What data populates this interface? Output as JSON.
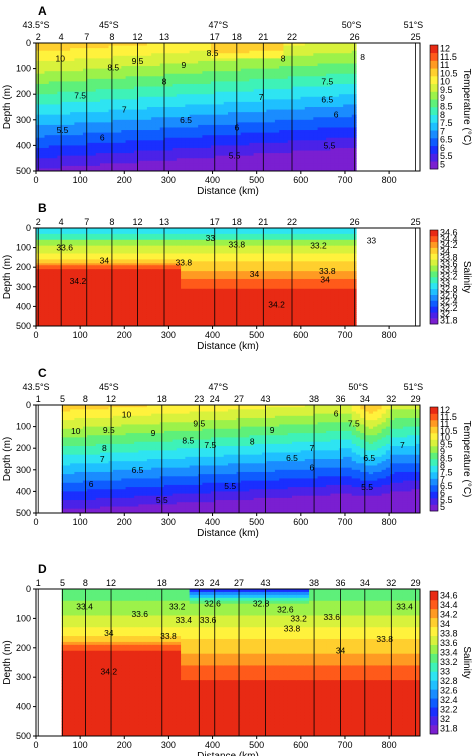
{
  "chart_data": [
    {
      "panel": "A",
      "type": "heatmap",
      "xlabel": "Distance (km)",
      "ylabel": "Depth (m)",
      "colorbar_label": "Temperature (°C)",
      "xlim": [
        0,
        870
      ],
      "ylim": [
        500,
        0
      ],
      "xticks": [
        0,
        100,
        200,
        300,
        400,
        500,
        600,
        700,
        800
      ],
      "yticks": [
        0,
        100,
        200,
        300,
        400,
        500
      ],
      "lat_labels": [
        {
          "text": "43.5°S",
          "x": 0
        },
        {
          "text": "45°S",
          "x": 165
        },
        {
          "text": "47°S",
          "x": 413
        },
        {
          "text": "50°S",
          "x": 715
        },
        {
          "text": "51°S",
          "x": 855
        }
      ],
      "stations": [
        {
          "label": "2",
          "x": 5
        },
        {
          "label": "4",
          "x": 57
        },
        {
          "label": "7",
          "x": 115
        },
        {
          "label": "8",
          "x": 172
        },
        {
          "label": "12",
          "x": 230
        },
        {
          "label": "13",
          "x": 290
        },
        {
          "label": "17",
          "x": 405
        },
        {
          "label": "18",
          "x": 455
        },
        {
          "label": "21",
          "x": 515
        },
        {
          "label": "22",
          "x": 580
        },
        {
          "label": "26",
          "x": 722
        },
        {
          "label": "25",
          "x": 860
        }
      ],
      "colorbar_ticks": [
        "5",
        "5.5",
        "6",
        "6.5",
        "7",
        "7.5",
        "8",
        "8.5",
        "9",
        "9.5",
        "10",
        "10.5",
        "11",
        "11.5",
        "12"
      ],
      "colorbar_colors": [
        "#7a1fd1",
        "#4b22e8",
        "#1a2fff",
        "#0f5cff",
        "#1a8cff",
        "#1fc0ff",
        "#2ee4f2",
        "#3ef2b8",
        "#5ef07a",
        "#9cf24a",
        "#d8f23c",
        "#fff23c",
        "#ffcf2e",
        "#ff9a22",
        "#ff5a1a",
        "#e82a14"
      ],
      "vmin": 5,
      "vmax": 12,
      "contour_labels": [
        {
          "text": "10",
          "x": 55,
          "y": 60
        },
        {
          "text": "9.5",
          "x": 230,
          "y": 70
        },
        {
          "text": "9",
          "x": 335,
          "y": 85
        },
        {
          "text": "8.5",
          "x": 400,
          "y": 40
        },
        {
          "text": "8",
          "x": 560,
          "y": 60
        },
        {
          "text": "8.5",
          "x": 175,
          "y": 95
        },
        {
          "text": "8",
          "x": 290,
          "y": 150
        },
        {
          "text": "7.5",
          "x": 100,
          "y": 205
        },
        {
          "text": "7",
          "x": 200,
          "y": 260
        },
        {
          "text": "7",
          "x": 510,
          "y": 210
        },
        {
          "text": "6.5",
          "x": 340,
          "y": 300
        },
        {
          "text": "6",
          "x": 455,
          "y": 330
        },
        {
          "text": "6",
          "x": 150,
          "y": 370
        },
        {
          "text": "5.5",
          "x": 60,
          "y": 340
        },
        {
          "text": "5.5",
          "x": 450,
          "y": 440
        },
        {
          "text": "7.5",
          "x": 660,
          "y": 150
        },
        {
          "text": "6.5",
          "x": 660,
          "y": 220
        },
        {
          "text": "6",
          "x": 680,
          "y": 280
        },
        {
          "text": "5.5",
          "x": 665,
          "y": 400
        },
        {
          "text": "8",
          "x": 740,
          "y": 55
        }
      ]
    },
    {
      "panel": "B",
      "type": "heatmap",
      "xlabel": "Distance (km)",
      "ylabel": "Depth (m)",
      "colorbar_label": "Salinity",
      "xlim": [
        0,
        870
      ],
      "ylim": [
        500,
        0
      ],
      "xticks": [
        0,
        100,
        200,
        300,
        400,
        500,
        600,
        700,
        800
      ],
      "yticks": [
        0,
        100,
        200,
        300,
        400,
        500
      ],
      "stations": [
        {
          "label": "2",
          "x": 5
        },
        {
          "label": "4",
          "x": 57
        },
        {
          "label": "7",
          "x": 115
        },
        {
          "label": "8",
          "x": 172
        },
        {
          "label": "12",
          "x": 230
        },
        {
          "label": "13",
          "x": 290
        },
        {
          "label": "17",
          "x": 405
        },
        {
          "label": "18",
          "x": 455
        },
        {
          "label": "21",
          "x": 515
        },
        {
          "label": "22",
          "x": 580
        },
        {
          "label": "26",
          "x": 722
        },
        {
          "label": "25",
          "x": 860
        }
      ],
      "colorbar_ticks": [
        "31.8",
        "32",
        "32.2",
        "32.4",
        "32.6",
        "32.8",
        "33",
        "33.2",
        "33.4",
        "33.6",
        "33.8",
        "34",
        "34.2",
        "34.4",
        "34.6"
      ],
      "colorbar_colors": [
        "#7a1fd1",
        "#4b22e8",
        "#1a2fff",
        "#0f5cff",
        "#1a8cff",
        "#1fc0ff",
        "#2ee4f2",
        "#3ef2b8",
        "#5ef07a",
        "#9cf24a",
        "#d8f23c",
        "#fff23c",
        "#ffcf2e",
        "#ff9a22",
        "#ff5a1a",
        "#e82a14"
      ],
      "vmin": 31.8,
      "vmax": 34.6,
      "contour_labels": [
        {
          "text": "33.6",
          "x": 65,
          "y": 100
        },
        {
          "text": "33",
          "x": 395,
          "y": 50
        },
        {
          "text": "33.8",
          "x": 455,
          "y": 85
        },
        {
          "text": "33.2",
          "x": 640,
          "y": 90
        },
        {
          "text": "33",
          "x": 760,
          "y": 65
        },
        {
          "text": "34",
          "x": 155,
          "y": 165
        },
        {
          "text": "33.8",
          "x": 335,
          "y": 175
        },
        {
          "text": "34",
          "x": 495,
          "y": 235
        },
        {
          "text": "33.8",
          "x": 660,
          "y": 220
        },
        {
          "text": "34",
          "x": 655,
          "y": 262
        },
        {
          "text": "34.2",
          "x": 95,
          "y": 270
        },
        {
          "text": "34.2",
          "x": 545,
          "y": 390
        }
      ]
    },
    {
      "panel": "C",
      "type": "heatmap",
      "xlabel": "Distance (km)",
      "ylabel": "Depth (m)",
      "colorbar_label": "Temperature (°C)",
      "xlim": [
        0,
        870
      ],
      "ylim": [
        500,
        0
      ],
      "xticks": [
        0,
        100,
        200,
        300,
        400,
        500,
        600,
        700,
        800
      ],
      "yticks": [
        0,
        100,
        200,
        300,
        400,
        500
      ],
      "lat_labels": [
        {
          "text": "43.5°S",
          "x": 0
        },
        {
          "text": "45°S",
          "x": 165
        },
        {
          "text": "47°S",
          "x": 413
        },
        {
          "text": "50°S",
          "x": 730
        },
        {
          "text": "51°S",
          "x": 855
        }
      ],
      "stations": [
        {
          "label": "1",
          "x": 5
        },
        {
          "label": "5",
          "x": 60
        },
        {
          "label": "8",
          "x": 112
        },
        {
          "label": "12",
          "x": 170
        },
        {
          "label": "18",
          "x": 285
        },
        {
          "label": "23",
          "x": 370
        },
        {
          "label": "24",
          "x": 405
        },
        {
          "label": "27",
          "x": 460
        },
        {
          "label": "43",
          "x": 520
        },
        {
          "label": "38",
          "x": 630
        },
        {
          "label": "36",
          "x": 690
        },
        {
          "label": "34",
          "x": 745
        },
        {
          "label": "32",
          "x": 805
        },
        {
          "label": "29",
          "x": 860
        }
      ],
      "colorbar_ticks": [
        "5",
        "5.5",
        "6",
        "6.5",
        "7",
        "7.5",
        "8",
        "8.5",
        "9",
        "9.5",
        "10",
        "10.5",
        "11",
        "11.5",
        "12"
      ],
      "colorbar_colors": [
        "#7a1fd1",
        "#4b22e8",
        "#1a2fff",
        "#0f5cff",
        "#1a8cff",
        "#1fc0ff",
        "#2ee4f2",
        "#3ef2b8",
        "#5ef07a",
        "#9cf24a",
        "#d8f23c",
        "#fff23c",
        "#ffcf2e",
        "#ff9a22",
        "#ff5a1a",
        "#e82a14"
      ],
      "vmin": 5,
      "vmax": 12,
      "contour_labels": [
        {
          "text": "10",
          "x": 90,
          "y": 120
        },
        {
          "text": "10",
          "x": 205,
          "y": 45
        },
        {
          "text": "9.5",
          "x": 165,
          "y": 115
        },
        {
          "text": "9.5",
          "x": 370,
          "y": 85
        },
        {
          "text": "9",
          "x": 265,
          "y": 130
        },
        {
          "text": "9",
          "x": 535,
          "y": 115
        },
        {
          "text": "8",
          "x": 155,
          "y": 200
        },
        {
          "text": "8",
          "x": 490,
          "y": 170
        },
        {
          "text": "8.5",
          "x": 345,
          "y": 165
        },
        {
          "text": "7.5",
          "x": 395,
          "y": 185
        },
        {
          "text": "7",
          "x": 150,
          "y": 250
        },
        {
          "text": "7",
          "x": 625,
          "y": 200
        },
        {
          "text": "6.5",
          "x": 230,
          "y": 300
        },
        {
          "text": "6.5",
          "x": 580,
          "y": 245
        },
        {
          "text": "6",
          "x": 125,
          "y": 365
        },
        {
          "text": "6",
          "x": 625,
          "y": 290
        },
        {
          "text": "5.5",
          "x": 285,
          "y": 440
        },
        {
          "text": "5.5",
          "x": 440,
          "y": 375
        },
        {
          "text": "5.5",
          "x": 750,
          "y": 380
        },
        {
          "text": "6.5",
          "x": 755,
          "y": 245
        },
        {
          "text": "7.5",
          "x": 720,
          "y": 85
        },
        {
          "text": "6",
          "x": 680,
          "y": 40
        },
        {
          "text": "7",
          "x": 830,
          "y": 185
        }
      ]
    },
    {
      "panel": "D",
      "type": "heatmap",
      "xlabel": "Distance (km)",
      "ylabel": "Depth (m)",
      "colorbar_label": "Salinity",
      "xlim": [
        0,
        870
      ],
      "ylim": [
        500,
        0
      ],
      "xticks": [
        0,
        100,
        200,
        300,
        400,
        500,
        600,
        700,
        800
      ],
      "yticks": [
        0,
        100,
        200,
        300,
        400,
        500
      ],
      "stations": [
        {
          "label": "1",
          "x": 5
        },
        {
          "label": "5",
          "x": 60
        },
        {
          "label": "8",
          "x": 112
        },
        {
          "label": "12",
          "x": 170
        },
        {
          "label": "18",
          "x": 285
        },
        {
          "label": "23",
          "x": 370
        },
        {
          "label": "24",
          "x": 405
        },
        {
          "label": "27",
          "x": 460
        },
        {
          "label": "43",
          "x": 520
        },
        {
          "label": "38",
          "x": 630
        },
        {
          "label": "36",
          "x": 690
        },
        {
          "label": "34",
          "x": 745
        },
        {
          "label": "32",
          "x": 805
        },
        {
          "label": "29",
          "x": 860
        }
      ],
      "colorbar_ticks": [
        "31.8",
        "32",
        "32.2",
        "32.4",
        "32.6",
        "32.8",
        "33",
        "33.2",
        "33.4",
        "33.6",
        "33.8",
        "34",
        "34.2",
        "34.4",
        "34.6"
      ],
      "colorbar_colors": [
        "#7a1fd1",
        "#4b22e8",
        "#1a2fff",
        "#0f5cff",
        "#1a8cff",
        "#1fc0ff",
        "#2ee4f2",
        "#3ef2b8",
        "#5ef07a",
        "#9cf24a",
        "#d8f23c",
        "#fff23c",
        "#ffcf2e",
        "#ff9a22",
        "#ff5a1a",
        "#e82a14"
      ],
      "vmin": 31.8,
      "vmax": 34.6,
      "contour_labels": [
        {
          "text": "33.4",
          "x": 110,
          "y": 60
        },
        {
          "text": "33.2",
          "x": 320,
          "y": 60
        },
        {
          "text": "32.6",
          "x": 400,
          "y": 50
        },
        {
          "text": "32.8",
          "x": 510,
          "y": 50
        },
        {
          "text": "32.6",
          "x": 565,
          "y": 70
        },
        {
          "text": "33.6",
          "x": 235,
          "y": 85
        },
        {
          "text": "33.4",
          "x": 335,
          "y": 105
        },
        {
          "text": "33.6",
          "x": 390,
          "y": 105
        },
        {
          "text": "33.2",
          "x": 595,
          "y": 100
        },
        {
          "text": "33.6",
          "x": 670,
          "y": 95
        },
        {
          "text": "33.4",
          "x": 835,
          "y": 60
        },
        {
          "text": "34",
          "x": 165,
          "y": 150
        },
        {
          "text": "33.8",
          "x": 300,
          "y": 160
        },
        {
          "text": "33.8",
          "x": 580,
          "y": 135
        },
        {
          "text": "33.8",
          "x": 790,
          "y": 170
        },
        {
          "text": "34",
          "x": 690,
          "y": 210
        },
        {
          "text": "34.2",
          "x": 165,
          "y": 280
        }
      ]
    }
  ]
}
